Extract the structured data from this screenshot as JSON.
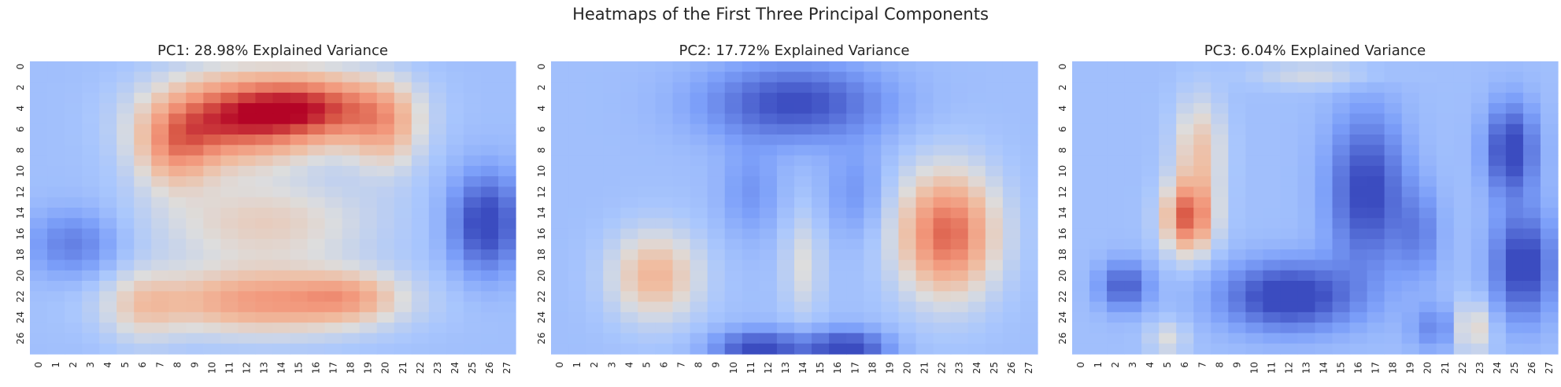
{
  "suptitle": "Heatmaps of the First Three Principal Components",
  "chart_data": [
    {
      "type": "heatmap",
      "title": "PC1: 28.98% Explained Variance",
      "colormap": "coolwarm",
      "xticks": [
        0,
        1,
        2,
        3,
        4,
        5,
        6,
        7,
        8,
        9,
        10,
        11,
        12,
        13,
        14,
        15,
        16,
        17,
        18,
        19,
        20,
        21,
        22,
        23,
        24,
        25,
        26,
        27
      ],
      "yticks": [
        0,
        2,
        4,
        6,
        8,
        10,
        12,
        14,
        16,
        18,
        20,
        22,
        24,
        26
      ],
      "grid_size": [
        28,
        28
      ],
      "blobs": [
        {
          "x": 11,
          "y": 5,
          "sx": 3.2,
          "sy": 3.0,
          "amp": 1.0
        },
        {
          "x": 16,
          "y": 4,
          "sx": 3.0,
          "sy": 2.4,
          "amp": 0.95
        },
        {
          "x": 7.8,
          "y": 8,
          "sx": 1.6,
          "sy": 2.8,
          "amp": 0.55
        },
        {
          "x": 20,
          "y": 6,
          "sx": 1.5,
          "sy": 3.0,
          "amp": 0.5
        },
        {
          "x": 13,
          "y": 15,
          "sx": 4.5,
          "sy": 3.0,
          "amp": 0.42
        },
        {
          "x": 13,
          "y": 22.5,
          "sx": 4.8,
          "sy": 2.2,
          "amp": 0.75
        },
        {
          "x": 18,
          "y": 22,
          "sx": 2.0,
          "sy": 1.6,
          "amp": 0.35
        },
        {
          "x": 6,
          "y": 23,
          "sx": 1.5,
          "sy": 2.5,
          "amp": 0.3
        },
        {
          "x": 25.8,
          "y": 15,
          "sx": 1.4,
          "sy": 3.2,
          "amp": -0.8
        },
        {
          "x": 2,
          "y": 17,
          "sx": 1.8,
          "sy": 2.2,
          "amp": -0.4
        }
      ]
    },
    {
      "type": "heatmap",
      "title": "PC2: 17.72% Explained Variance",
      "colormap": "coolwarm",
      "xticks": [
        0,
        1,
        2,
        3,
        4,
        5,
        6,
        7,
        8,
        9,
        10,
        11,
        12,
        13,
        14,
        15,
        16,
        17,
        18,
        19,
        20,
        21,
        22,
        23,
        24,
        25,
        26,
        27
      ],
      "yticks": [
        0,
        2,
        4,
        6,
        8,
        10,
        12,
        14,
        16,
        18,
        20,
        22,
        24,
        26
      ],
      "grid_size": [
        28,
        28
      ],
      "blobs": [
        {
          "x": 22.3,
          "y": 16,
          "sx": 2.0,
          "sy": 4.2,
          "amp": 1.0
        },
        {
          "x": 5.5,
          "y": 20,
          "sx": 1.8,
          "sy": 3.0,
          "amp": 0.6
        },
        {
          "x": 14,
          "y": 19,
          "sx": 0.8,
          "sy": 3.5,
          "amp": 0.3
        },
        {
          "x": 13.5,
          "y": 3.5,
          "sx": 3.5,
          "sy": 2.5,
          "amp": -0.7
        },
        {
          "x": 11.5,
          "y": 27,
          "sx": 1.8,
          "sy": 1.2,
          "amp": -0.75
        },
        {
          "x": 16.5,
          "y": 27,
          "sx": 1.6,
          "sy": 1.2,
          "amp": -0.8
        },
        {
          "x": 11,
          "y": 12,
          "sx": 1.2,
          "sy": 3.0,
          "amp": -0.25
        },
        {
          "x": 17,
          "y": 12,
          "sx": 1.2,
          "sy": 3.0,
          "amp": -0.25
        }
      ]
    },
    {
      "type": "heatmap",
      "title": "PC3: 6.04% Explained Variance",
      "colormap": "coolwarm",
      "xticks": [
        0,
        1,
        2,
        3,
        4,
        5,
        6,
        7,
        8,
        9,
        10,
        11,
        12,
        13,
        14,
        15,
        16,
        17,
        18,
        19,
        20,
        21,
        22,
        23,
        24,
        25,
        26,
        27
      ],
      "yticks": [
        0,
        2,
        4,
        6,
        8,
        10,
        12,
        14,
        16,
        18,
        20,
        22,
        24,
        26
      ],
      "grid_size": [
        28,
        28
      ],
      "blobs": [
        {
          "x": 6.2,
          "y": 14.5,
          "sx": 1.0,
          "sy": 2.4,
          "amp": 1.0
        },
        {
          "x": 6.8,
          "y": 8,
          "sx": 1.0,
          "sy": 3.5,
          "amp": 0.5
        },
        {
          "x": 13.5,
          "y": 0.8,
          "sx": 2.5,
          "sy": 0.9,
          "amp": 0.25
        },
        {
          "x": 5,
          "y": 26,
          "sx": 0.8,
          "sy": 1.2,
          "amp": 0.3
        },
        {
          "x": 22.5,
          "y": 25,
          "sx": 0.8,
          "sy": 1.8,
          "amp": 0.45
        },
        {
          "x": 16.5,
          "y": 12,
          "sx": 1.5,
          "sy": 5.0,
          "amp": -0.75
        },
        {
          "x": 24.8,
          "y": 8,
          "sx": 1.0,
          "sy": 3.0,
          "amp": -0.8
        },
        {
          "x": 25.5,
          "y": 19,
          "sx": 1.2,
          "sy": 3.5,
          "amp": -0.8
        },
        {
          "x": 12,
          "y": 22,
          "sx": 2.6,
          "sy": 2.2,
          "amp": -0.85
        },
        {
          "x": 2.5,
          "y": 21,
          "sx": 1.0,
          "sy": 1.6,
          "amp": -0.6
        },
        {
          "x": 19.5,
          "y": 16,
          "sx": 0.9,
          "sy": 3.0,
          "amp": -0.35
        },
        {
          "x": 20.5,
          "y": 25,
          "sx": 1.0,
          "sy": 1.5,
          "amp": -0.35
        }
      ]
    }
  ]
}
